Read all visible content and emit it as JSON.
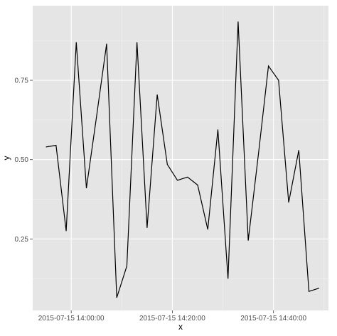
{
  "chart_data": {
    "type": "line",
    "title": "",
    "xlabel": "x",
    "ylabel": "y",
    "x_tick_labels": [
      "2015-07-15 14:00:00",
      "2015-07-15 14:20:00",
      "2015-07-15 14:40:00"
    ],
    "y_tick_labels": [
      "0.25",
      "0.50",
      "0.75"
    ],
    "x_ticks": [
      "2015-07-15 14:00:00",
      "2015-07-15 14:20:00",
      "2015-07-15 14:40:00"
    ],
    "y_ticks": [
      0.25,
      0.5,
      0.75
    ],
    "xlim": [
      "2015-07-15 13:52:23",
      "2015-07-15 14:50:52"
    ],
    "ylim": [
      0.025,
      0.985
    ],
    "grid": true,
    "legend": "none",
    "colors": {
      "panel_background": "#e5e5e5",
      "grid_major": "#ffffff",
      "grid_minor": "#f2f2f2",
      "line": "#000000"
    },
    "series": [
      {
        "x": [
          "2015-07-15 13:55:00",
          "2015-07-15 13:57:00",
          "2015-07-15 13:59:00",
          "2015-07-15 14:01:00",
          "2015-07-15 14:03:00",
          "2015-07-15 14:05:00",
          "2015-07-15 14:07:00",
          "2015-07-15 14:09:00",
          "2015-07-15 14:11:00",
          "2015-07-15 14:13:00",
          "2015-07-15 14:15:00",
          "2015-07-15 14:17:00",
          "2015-07-15 14:19:00",
          "2015-07-15 14:21:00",
          "2015-07-15 14:23:00",
          "2015-07-15 14:25:00",
          "2015-07-15 14:27:00",
          "2015-07-15 14:29:00",
          "2015-07-15 14:31:00",
          "2015-07-15 14:33:00",
          "2015-07-15 14:35:00",
          "2015-07-15 14:37:00",
          "2015-07-15 14:39:00",
          "2015-07-15 14:41:00",
          "2015-07-15 14:43:00",
          "2015-07-15 14:45:00",
          "2015-07-15 14:47:00",
          "2015-07-15 14:49:00"
        ],
        "y": [
          0.54,
          0.545,
          0.275,
          0.87,
          0.41,
          0.635,
          0.865,
          0.065,
          0.165,
          0.87,
          0.285,
          0.705,
          0.485,
          0.435,
          0.445,
          0.42,
          0.28,
          0.595,
          0.125,
          0.935,
          0.245,
          0.515,
          0.795,
          0.75,
          0.365,
          0.53,
          0.085,
          0.095
        ]
      }
    ]
  }
}
